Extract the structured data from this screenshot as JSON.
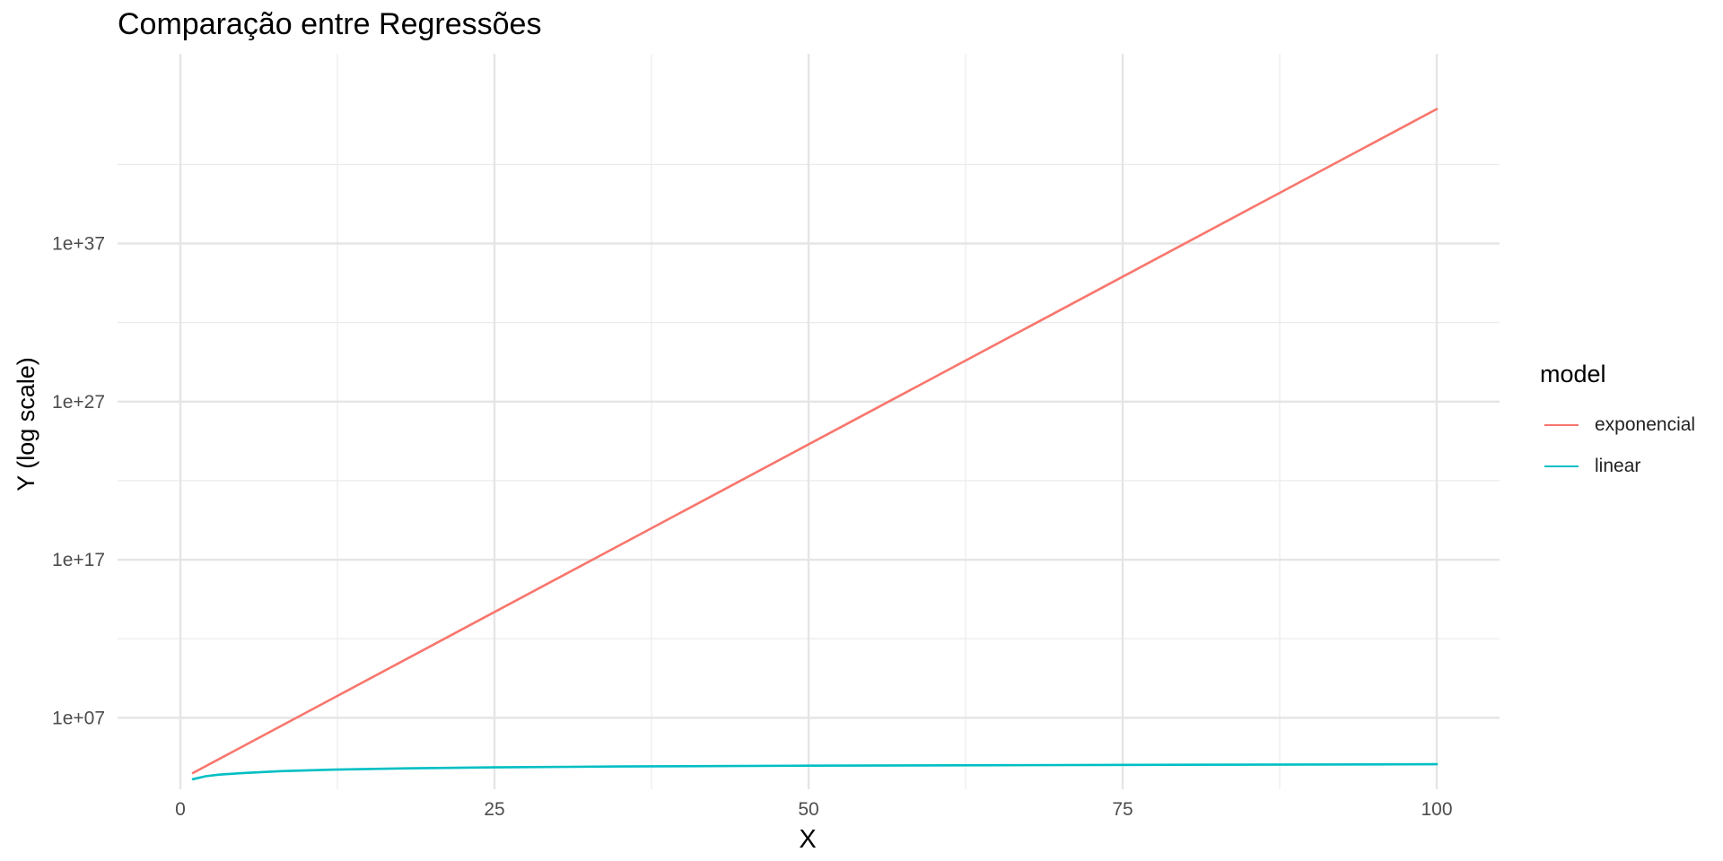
{
  "chart_data": {
    "type": "line",
    "title": "Comparação entre Regressões",
    "xlabel": "X",
    "ylabel": "Y (log scale)",
    "x_scale": "linear",
    "y_scale": "log10",
    "xlim": [
      -5,
      105
    ],
    "ylim": [
      300,
      1e+49
    ],
    "x_ticks": [
      0,
      25,
      50,
      75,
      100
    ],
    "x_tick_labels": [
      "0",
      "25",
      "50",
      "75",
      "100"
    ],
    "y_ticks": [
      10000000.0,
      1e+17,
      1e+27,
      1e+37
    ],
    "y_tick_labels": [
      "1e+07",
      "1e+17",
      "1e+27",
      "1e+37"
    ],
    "grid": true,
    "legend": {
      "title": "model",
      "position": "right"
    },
    "series": [
      {
        "name": "exponencial",
        "color": "#F8766D",
        "x": [
          1,
          100
        ],
        "y": [
          3200,
          3.2e+45
        ]
      },
      {
        "name": "linear",
        "color": "#00BFC4",
        "x": [
          1,
          2,
          3,
          5,
          8,
          12,
          18,
          25,
          35,
          50,
          65,
          80,
          100
        ],
        "y": [
          1300,
          2000,
          2500,
          3200,
          4200,
          5200,
          6300,
          7300,
          8300,
          9300,
          10000,
          10600,
          11500
        ]
      }
    ]
  }
}
